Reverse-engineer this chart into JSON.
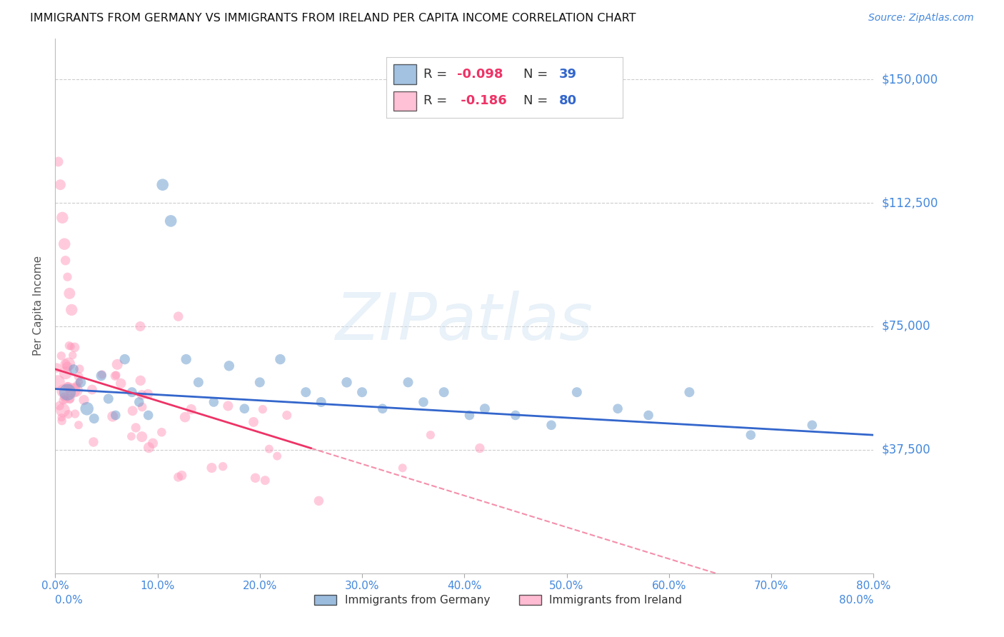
{
  "title": "IMMIGRANTS FROM GERMANY VS IMMIGRANTS FROM IRELAND PER CAPITA INCOME CORRELATION CHART",
  "source": "Source: ZipAtlas.com",
  "ylabel": "Per Capita Income",
  "xlim": [
    0.0,
    80.0
  ],
  "ylim": [
    0,
    162500
  ],
  "yticks": [
    37500,
    75000,
    112500,
    150000
  ],
  "ytick_labels": [
    "$37,500",
    "$75,000",
    "$112,500",
    "$150,000"
  ],
  "xticks": [
    0.0,
    10.0,
    20.0,
    30.0,
    40.0,
    50.0,
    60.0,
    70.0,
    80.0
  ],
  "xtick_labels": [
    "0.0%",
    "10.0%",
    "20.0%",
    "30.0%",
    "40.0%",
    "50.0%",
    "60.0%",
    "70.0%",
    "80.0%"
  ],
  "germany_color": "#6699cc",
  "ireland_color": "#ff99bb",
  "germany_label": "Immigrants from Germany",
  "ireland_label": "Immigrants from Ireland",
  "germany_R": "-0.098",
  "germany_N": "39",
  "ireland_R": "-0.186",
  "ireland_N": "80",
  "watermark_text": "ZIPatlas",
  "background_color": "#ffffff",
  "label_color": "#4488dd",
  "title_color": "#111111",
  "trend_blue": "#3366cc",
  "trend_pink": "#ee3366"
}
